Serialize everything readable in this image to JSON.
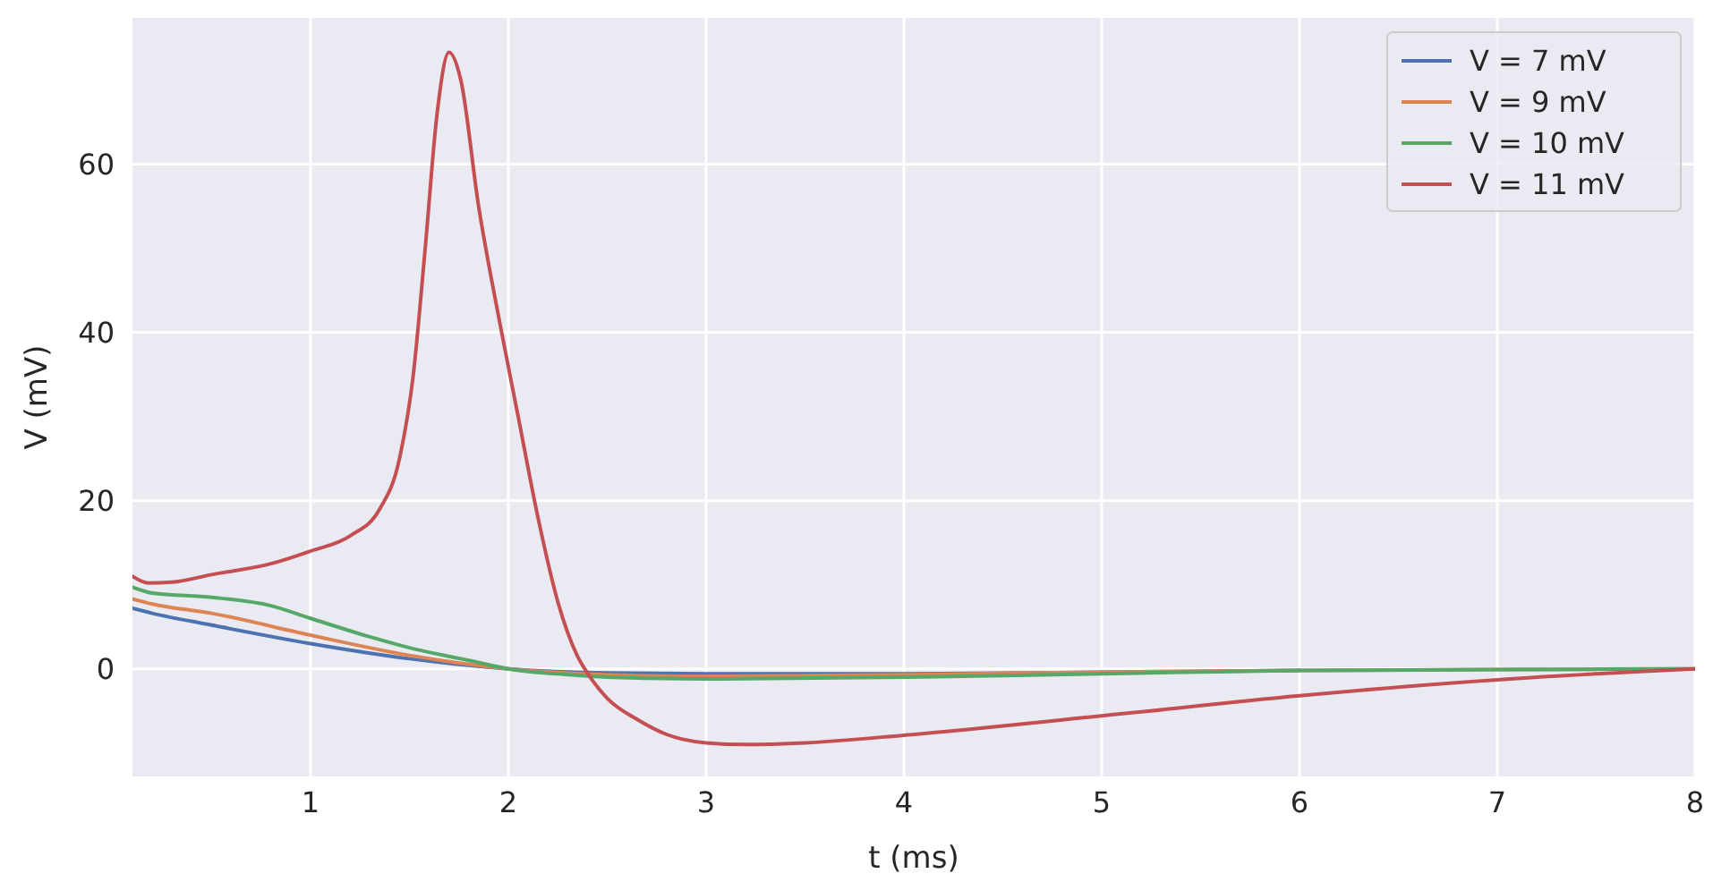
{
  "chart_data": {
    "type": "line",
    "xlabel": "t (ms)",
    "ylabel": "V (mV)",
    "xlim": [
      0.1,
      8
    ],
    "ylim": [
      -12.8,
      77.4
    ],
    "xticks": [
      1,
      2,
      3,
      4,
      5,
      6,
      7,
      8
    ],
    "yticks": [
      0,
      20,
      40,
      60
    ],
    "grid": true,
    "legend": "top right",
    "line_style": "solid",
    "marker": "none",
    "series": [
      {
        "name": "V = 7 mV",
        "color": "#4c72b0",
        "x": [
          0.1,
          0.2,
          0.5,
          1,
          1.5,
          2,
          2.5,
          3,
          4,
          5,
          6
        ],
        "values": [
          7.2,
          6.6,
          5.2,
          3.0,
          1.2,
          0,
          -0.5,
          -0.6,
          -0.6,
          -0.4,
          -0.2
        ]
      },
      {
        "name": "V = 9 mV",
        "color": "#dd8452",
        "x": [
          0.1,
          0.2,
          0.5,
          1,
          1.5,
          2,
          2.5,
          3,
          4,
          5,
          6,
          7,
          8
        ],
        "values": [
          8.3,
          7.7,
          6.6,
          4.0,
          1.6,
          0,
          -0.7,
          -0.9,
          -0.7,
          -0.4,
          -0.2,
          -0.1,
          0
        ]
      },
      {
        "name": "V = 10 mV",
        "color": "#55a868",
        "x": [
          0.1,
          0.2,
          0.5,
          0.8,
          1,
          1.3,
          1.5,
          1.8,
          2,
          2.3,
          2.5,
          3,
          4,
          5,
          6,
          7,
          8
        ],
        "values": [
          9.7,
          9.0,
          8.5,
          7.5,
          6.0,
          3.8,
          2.5,
          1.0,
          0,
          -0.7,
          -1.0,
          -1.2,
          -1.0,
          -0.6,
          -0.2,
          -0.1,
          0
        ]
      },
      {
        "name": "V = 11 mV",
        "color": "#c44e52",
        "x": [
          0.1,
          0.18,
          0.3,
          0.5,
          0.8,
          1.0,
          1.2,
          1.35,
          1.45,
          1.52,
          1.58,
          1.64,
          1.7,
          1.76,
          1.85,
          1.95,
          2.05,
          2.15,
          2.25,
          2.35,
          2.4,
          2.5,
          2.65,
          2.8,
          3.0,
          3.2,
          3.5,
          4,
          5,
          6,
          7,
          8
        ],
        "values": [
          11,
          10.2,
          10.3,
          11.2,
          12.5,
          14.0,
          15.8,
          19,
          25,
          35,
          50,
          66,
          73.3,
          70,
          55,
          42,
          30,
          18,
          8,
          1.5,
          -0.5,
          -3.5,
          -6,
          -7.8,
          -8.8,
          -9.0,
          -8.8,
          -7.9,
          -5.6,
          -3.2,
          -1.3,
          0
        ]
      }
    ]
  }
}
